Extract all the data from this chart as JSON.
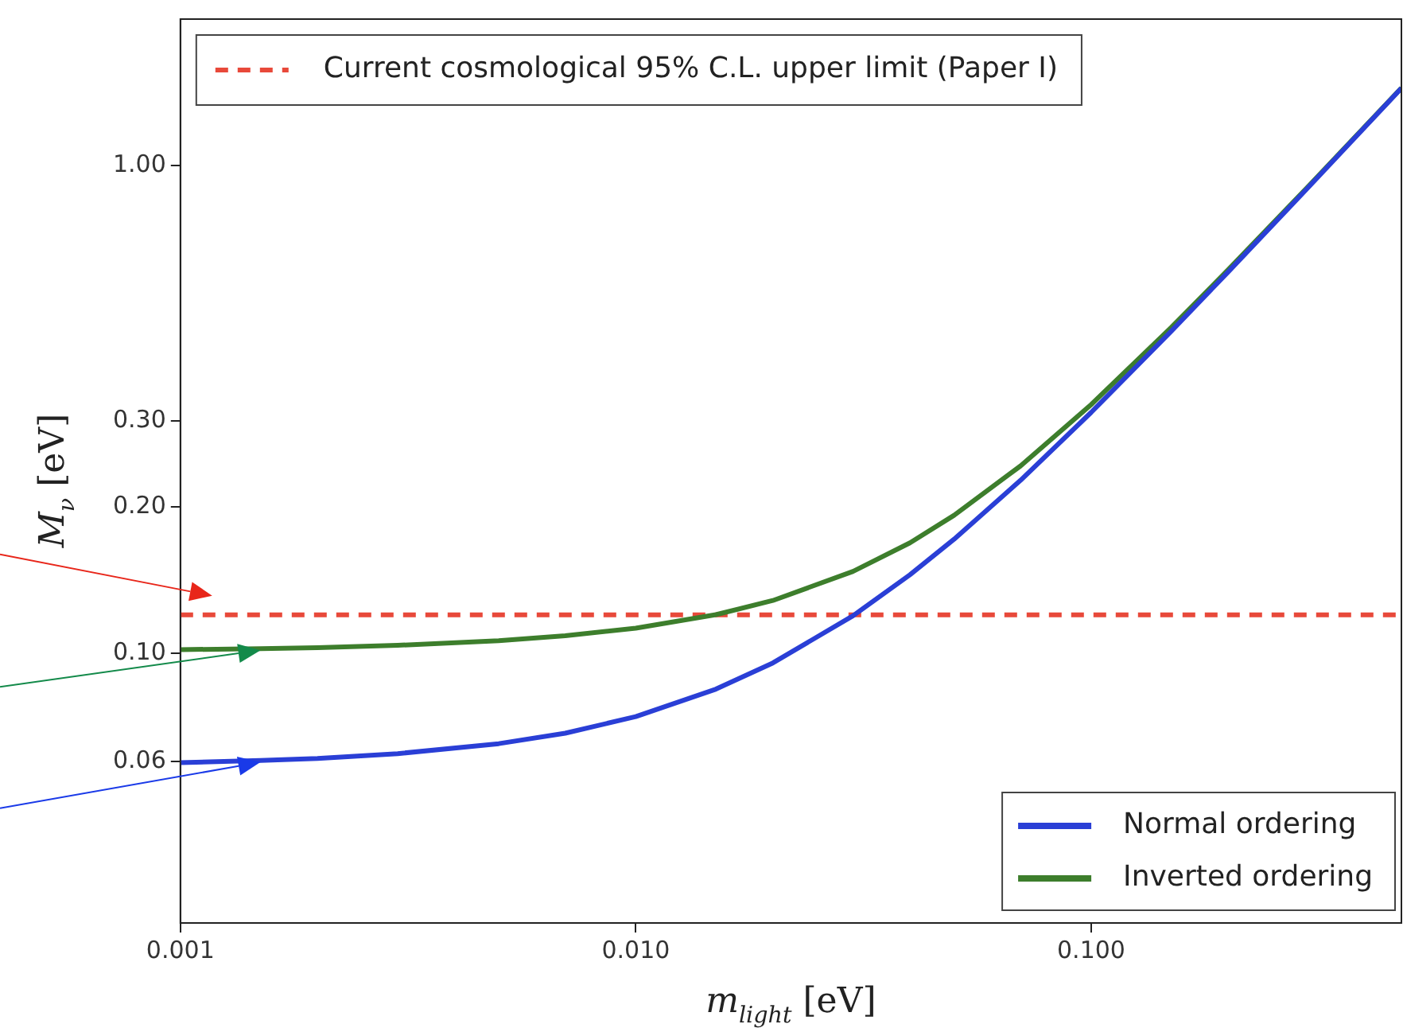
{
  "chart_data": {
    "type": "line",
    "xlabel": "m$_{light}$ [eV]",
    "ylabel": "M$_{ν}$ [eV]",
    "x": [
      0.001,
      0.0015,
      0.002,
      0.003,
      0.005,
      0.007,
      0.01,
      0.015,
      0.02,
      0.03,
      0.04,
      0.05,
      0.07,
      0.1,
      0.15,
      0.2,
      0.3,
      0.48
    ],
    "series": [
      {
        "name": "Normal ordering",
        "color": "#2a3fd6",
        "values": [
          0.0597,
          0.0603,
          0.0609,
          0.0623,
          0.0653,
          0.0686,
          0.0742,
          0.0845,
          0.0956,
          0.1195,
          0.145,
          0.1715,
          0.2266,
          0.3122,
          0.4584,
          0.6064,
          0.9042,
          1.443
        ]
      },
      {
        "name": "Inverted ordering",
        "color": "#3d7e2c",
        "values": [
          0.1018,
          0.1023,
          0.1028,
          0.1039,
          0.1062,
          0.1087,
          0.1127,
          0.1201,
          0.1284,
          0.1473,
          0.1686,
          0.192,
          0.2425,
          0.3239,
          0.4665,
          0.6125,
          0.9084,
          1.445
        ]
      }
    ],
    "ref_lines": [
      {
        "axis": "y",
        "value": 0.12,
        "label": "Current cosmological 95% C.L. upper limit (Paper I)",
        "color": "#e8493a",
        "line_style": "dashed"
      }
    ],
    "log": "xy",
    "xlim": [
      0.001,
      0.48
    ],
    "ylim": [
      0.028,
      2.0
    ],
    "xticks": [
      {
        "value": 0.001,
        "label": "0.001"
      },
      {
        "value": 0.01,
        "label": "0.010"
      },
      {
        "value": 0.1,
        "label": "0.100"
      }
    ],
    "yticks": [
      {
        "value": 0.06,
        "label": "0.06"
      },
      {
        "value": 0.1,
        "label": "0.10"
      },
      {
        "value": 0.2,
        "label": "0.20"
      },
      {
        "value": 0.3,
        "label": "0.30"
      },
      {
        "value": 1.0,
        "label": "1.00"
      }
    ],
    "grid": false,
    "legend": "bottom right",
    "line_style": "solid"
  }
}
